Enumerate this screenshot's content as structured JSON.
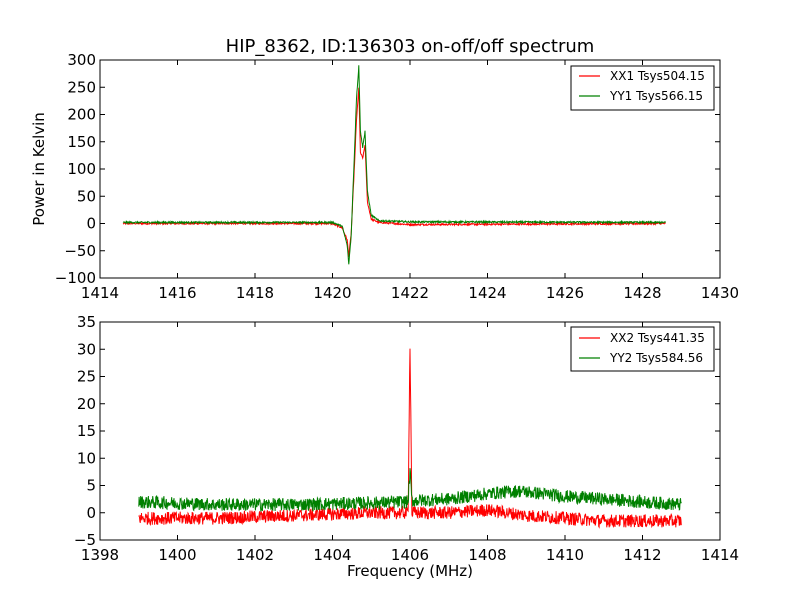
{
  "chart_data": [
    {
      "type": "line",
      "title": "HIP_8362, ID:136303 on-off/off spectrum",
      "xlabel": "",
      "ylabel": "Power in Kelvin",
      "xlim": [
        1414,
        1430
      ],
      "ylim": [
        -100,
        300
      ],
      "xticks": [
        "1414",
        "1416",
        "1418",
        "1420",
        "1422",
        "1424",
        "1426",
        "1428",
        "1430"
      ],
      "yticks": [
        "−100",
        "−50",
        "0",
        "50",
        "100",
        "150",
        "200",
        "250",
        "300"
      ],
      "legend_position": "top-right",
      "series": [
        {
          "name": "XX1 Tsys504.15",
          "color": "#ff0000",
          "x": [
            1414.6,
            1420.0,
            1420.25,
            1420.38,
            1420.42,
            1420.48,
            1420.55,
            1420.62,
            1420.68,
            1420.72,
            1420.78,
            1420.84,
            1420.9,
            1421.0,
            1421.2,
            1422.0,
            1428.6
          ],
          "y": [
            0,
            0,
            -8,
            -30,
            -60,
            -20,
            80,
            190,
            250,
            130,
            120,
            145,
            40,
            8,
            2,
            -2,
            0
          ]
        },
        {
          "name": "YY1 Tsys566.15",
          "color": "#008000",
          "x": [
            1414.6,
            1420.0,
            1420.25,
            1420.38,
            1420.42,
            1420.48,
            1420.55,
            1420.62,
            1420.68,
            1420.72,
            1420.78,
            1420.84,
            1420.9,
            1421.0,
            1421.2,
            1422.0,
            1428.6
          ],
          "y": [
            2,
            2,
            -5,
            -40,
            -75,
            -25,
            100,
            230,
            290,
            170,
            140,
            170,
            60,
            15,
            5,
            3,
            2
          ]
        }
      ]
    },
    {
      "type": "line",
      "title": "",
      "xlabel": "Frequency (MHz)",
      "ylabel": "",
      "xlim": [
        1398,
        1414
      ],
      "ylim": [
        -5,
        35
      ],
      "xticks": [
        "1398",
        "1400",
        "1402",
        "1404",
        "1406",
        "1408",
        "1410",
        "1412",
        "1414"
      ],
      "yticks": [
        "−5",
        "0",
        "5",
        "10",
        "15",
        "20",
        "25",
        "30",
        "35"
      ],
      "legend_position": "top-right",
      "series": [
        {
          "name": "XX2 Tsys441.35",
          "color": "#ff0000",
          "x": [
            1399.0,
            1401.0,
            1403.0,
            1405.0,
            1405.95,
            1406.0,
            1406.05,
            1407.0,
            1408.0,
            1409.0,
            1410.0,
            1411.0,
            1413.0
          ],
          "y": [
            -1,
            -1,
            -0.5,
            0,
            0,
            31,
            0,
            0,
            0.5,
            -0.5,
            -1,
            -1.5,
            -1.5
          ],
          "noise": 1.2
        },
        {
          "name": "YY2 Tsys584.56",
          "color": "#008000",
          "x": [
            1399.0,
            1401.0,
            1403.0,
            1405.0,
            1405.95,
            1406.0,
            1406.05,
            1407.0,
            1408.0,
            1408.8,
            1410.0,
            1411.0,
            1413.0
          ],
          "y": [
            2,
            1.5,
            1.5,
            1.8,
            2,
            7.5,
            2.2,
            2.5,
            3.5,
            4,
            3,
            2.5,
            1.5
          ],
          "noise": 1.2
        }
      ]
    }
  ]
}
